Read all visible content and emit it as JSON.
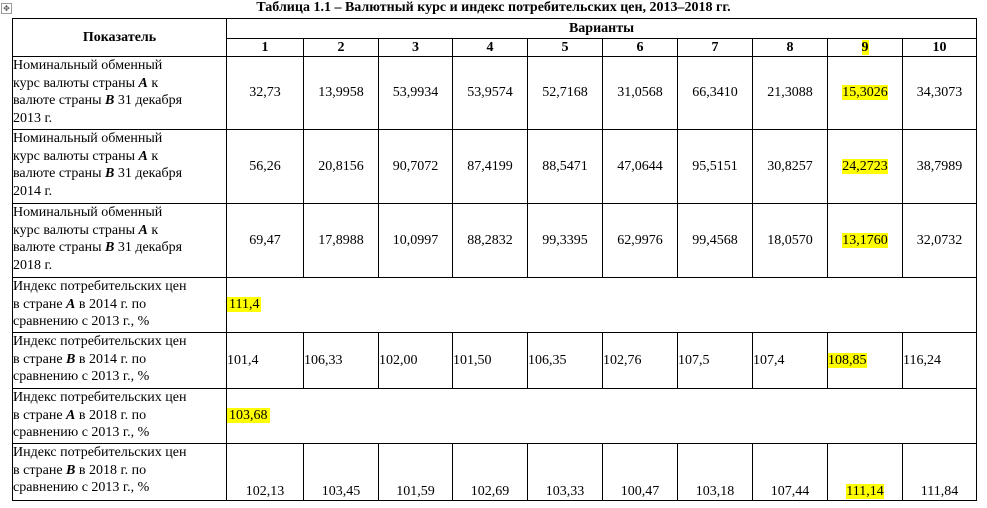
{
  "title": "Таблица 1.1 – Валютный курс и индекс потребительских цен, 2013–2018 гг.",
  "table": {
    "indicator_header": "Показатель",
    "variants_header": "Варианты",
    "variant_numbers": [
      "1",
      "2",
      "3",
      "4",
      "5",
      "6",
      "7",
      "8",
      "9",
      "10"
    ],
    "highlight_color": "#ffff00",
    "rows": [
      {
        "label": [
          "Номинальный обменный",
          "курс валюты страны ",
          "A",
          " к",
          "валюте страны ",
          "B",
          " 31 декабря",
          "2013 г."
        ],
        "values": [
          "32,73",
          "13,9958",
          "53,9934",
          "53,9574",
          "52,7168",
          "31,0568",
          "66,3410",
          "21,3088",
          "15,3026",
          "34,3073"
        ]
      },
      {
        "label": [
          "Номинальный обменный",
          "курс валюты страны ",
          "A",
          " к",
          "валюте страны ",
          "B",
          " 31 декабря",
          "2014 г."
        ],
        "values": [
          "56,26",
          "20,8156",
          "90,7072",
          "87,4199",
          "88,5471",
          "47,0644",
          "95,5151",
          "30,8257",
          "24,2723",
          "38,7989"
        ]
      },
      {
        "label": [
          "Номинальный обменный",
          "курс валюты страны ",
          "A",
          " к",
          "валюте страны ",
          "B",
          " 31 декабря",
          "2018 г."
        ],
        "values": [
          "69,47",
          "17,8988",
          "10,0997",
          "88,2832",
          "99,3395",
          "62,9976",
          "99,4568",
          "18,0570",
          "13,1760",
          "32,0732"
        ]
      },
      {
        "label": [
          "Индекс потребительских цен",
          "в стране ",
          "A",
          " в 2014 г. по",
          "сравнению с 2013 г., %"
        ],
        "value": "111,4"
      },
      {
        "label": [
          "Индекс потребительских цен",
          "в стране ",
          "B",
          " в 2014 г. по",
          "сравнению с 2013 г., %"
        ],
        "values": [
          "101,4",
          "106,33",
          "102,00",
          "101,50",
          "106,35",
          "102,76",
          "107,5",
          "107,4",
          "108,85",
          "116,24"
        ]
      },
      {
        "label": [
          "Индекс потребительских цен",
          "в стране ",
          "A",
          " в 2018 г. по",
          "сравнению с 2013 г., %"
        ],
        "value": "103,68"
      },
      {
        "label": [
          "Индекс потребительских цен",
          "в стране ",
          "B",
          " в 2018 г. по",
          "сравнению с 2013 г., %"
        ],
        "values": [
          "102,13",
          "103,45",
          "101,59",
          "102,69",
          "103,33",
          "100,47",
          "103,18",
          "107,44",
          "111,14",
          "111,84"
        ]
      }
    ]
  }
}
